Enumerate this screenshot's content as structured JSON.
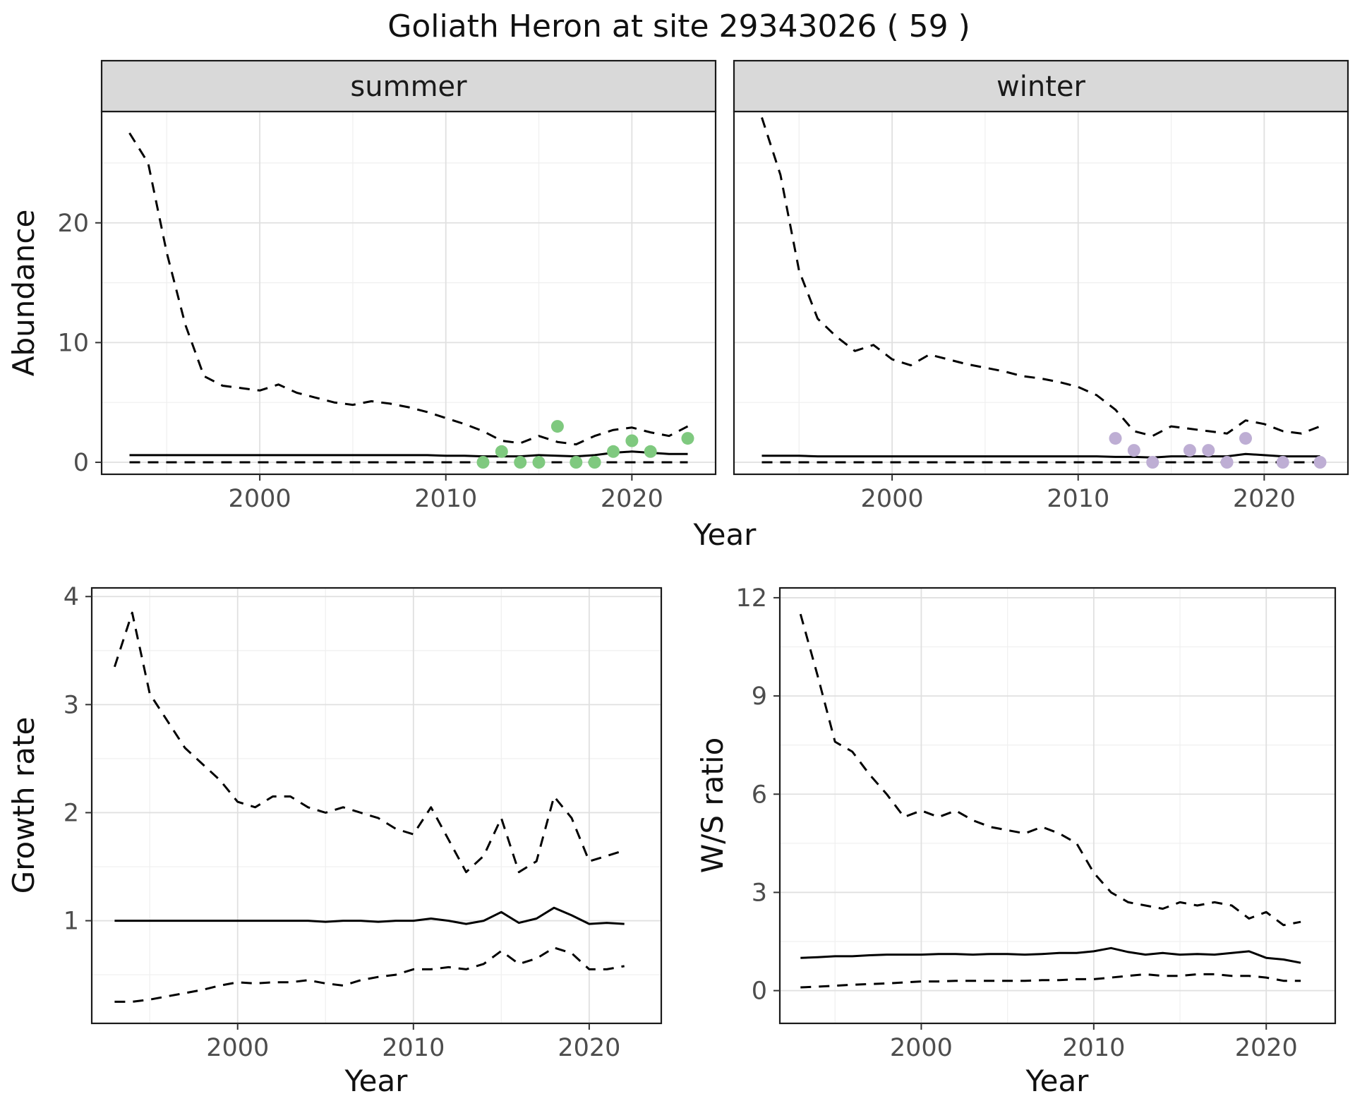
{
  "title": "Goliath Heron at site 29343026 ( 59 )",
  "colors": {
    "summer_points": "#7fc97f",
    "winter_points": "#beaed4",
    "line": "#000000",
    "strip_bg": "#d9d9d9",
    "panel_border": "#1a1a1a",
    "grid_major": "#e0e0e0",
    "grid_minor": "#f0f0f0",
    "tick_text": "#4d4d4d"
  },
  "chart_data": [
    {
      "id": "abundance",
      "type": "line",
      "xlabel": "Year",
      "ylabel": "Abundance",
      "legend": "none",
      "facets": [
        {
          "label": "summer",
          "xlim": [
            1991.5,
            2024.5
          ],
          "ylim": [
            -1.0,
            29.3
          ],
          "xticks": [
            2000,
            2010,
            2020
          ],
          "yticks": [
            0,
            10,
            20
          ],
          "xminor": [
            1995,
            2005,
            2015
          ],
          "yminor": [
            5,
            15,
            25
          ],
          "x": [
            1993,
            1994,
            1995,
            1996,
            1997,
            1998,
            1999,
            2000,
            2001,
            2002,
            2003,
            2004,
            2005,
            2006,
            2007,
            2008,
            2009,
            2010,
            2011,
            2012,
            2013,
            2014,
            2015,
            2016,
            2017,
            2018,
            2019,
            2020,
            2021,
            2022,
            2023
          ],
          "series": [
            {
              "name": "upper-ci",
              "style": "dashed",
              "y": [
                27.5,
                25.0,
                17.5,
                11.5,
                7.2,
                6.4,
                6.2,
                6.0,
                6.5,
                5.8,
                5.4,
                5.0,
                4.8,
                5.1,
                4.9,
                4.6,
                4.2,
                3.7,
                3.2,
                2.6,
                1.8,
                1.6,
                2.2,
                1.7,
                1.5,
                2.2,
                2.7,
                2.9,
                2.5,
                2.2,
                3.0
              ]
            },
            {
              "name": "median",
              "style": "solid",
              "y": [
                0.6,
                0.6,
                0.6,
                0.6,
                0.6,
                0.6,
                0.6,
                0.6,
                0.6,
                0.6,
                0.6,
                0.6,
                0.6,
                0.6,
                0.6,
                0.6,
                0.6,
                0.55,
                0.55,
                0.5,
                0.5,
                0.5,
                0.6,
                0.55,
                0.5,
                0.6,
                0.8,
                0.9,
                0.8,
                0.7,
                0.7
              ]
            },
            {
              "name": "lower-ci",
              "style": "dashed",
              "y": [
                0,
                0,
                0,
                0,
                0,
                0,
                0,
                0,
                0,
                0,
                0,
                0,
                0,
                0,
                0,
                0,
                0,
                0,
                0,
                0,
                0,
                0,
                0,
                0,
                0,
                0,
                0,
                0,
                0,
                0,
                0
              ]
            },
            {
              "name": "observed-counts",
              "style": "points",
              "color": "#7fc97f",
              "x": [
                2012,
                2013,
                2014,
                2015,
                2016,
                2017,
                2018,
                2019,
                2020,
                2021,
                2023
              ],
              "y": [
                0,
                0.9,
                0,
                0,
                3,
                0,
                0,
                0.9,
                1.8,
                0.9,
                2
              ]
            }
          ]
        },
        {
          "label": "winter",
          "xlim": [
            1991.5,
            2024.5
          ],
          "ylim": [
            -1.0,
            29.3
          ],
          "xticks": [
            2000,
            2010,
            2020
          ],
          "yticks": [
            0,
            10,
            20
          ],
          "xminor": [
            1995,
            2005,
            2015
          ],
          "yminor": [
            5,
            15,
            25
          ],
          "x": [
            1993,
            1994,
            1995,
            1996,
            1997,
            1998,
            1999,
            2000,
            2001,
            2002,
            2003,
            2004,
            2005,
            2006,
            2007,
            2008,
            2009,
            2010,
            2011,
            2012,
            2013,
            2014,
            2015,
            2016,
            2017,
            2018,
            2019,
            2020,
            2021,
            2022,
            2023
          ],
          "series": [
            {
              "name": "upper-ci",
              "style": "dashed",
              "y": [
                28.8,
                24.0,
                16.0,
                12.0,
                10.5,
                9.3,
                9.8,
                8.6,
                8.1,
                9.0,
                8.6,
                8.2,
                7.9,
                7.6,
                7.2,
                7.0,
                6.7,
                6.3,
                5.6,
                4.4,
                2.6,
                2.2,
                3.0,
                2.8,
                2.6,
                2.4,
                3.5,
                3.2,
                2.6,
                2.4,
                3.0
              ]
            },
            {
              "name": "median",
              "style": "solid",
              "y": [
                0.55,
                0.55,
                0.55,
                0.5,
                0.5,
                0.5,
                0.5,
                0.5,
                0.5,
                0.5,
                0.5,
                0.5,
                0.5,
                0.5,
                0.5,
                0.5,
                0.5,
                0.5,
                0.5,
                0.45,
                0.45,
                0.4,
                0.5,
                0.5,
                0.5,
                0.5,
                0.7,
                0.6,
                0.5,
                0.5,
                0.5
              ]
            },
            {
              "name": "lower-ci",
              "style": "dashed",
              "y": [
                0,
                0,
                0,
                0,
                0,
                0,
                0,
                0,
                0,
                0,
                0,
                0,
                0,
                0,
                0,
                0,
                0,
                0,
                0,
                0,
                0,
                0,
                0,
                0,
                0,
                0,
                0,
                0,
                0,
                0,
                0
              ]
            },
            {
              "name": "observed-counts",
              "style": "points",
              "color": "#beaed4",
              "x": [
                2012,
                2013,
                2014,
                2016,
                2017,
                2018,
                2019,
                2021,
                2023
              ],
              "y": [
                2,
                1,
                0,
                1,
                1,
                0,
                2,
                0,
                0
              ]
            }
          ]
        }
      ]
    },
    {
      "id": "growth_rate",
      "type": "line",
      "xlabel": "Year",
      "ylabel": "Growth rate",
      "legend": "none",
      "panel": {
        "xlim": [
          1991.7,
          2024.1
        ],
        "ylim": [
          0.05,
          4.08
        ],
        "xticks": [
          2000,
          2010,
          2020
        ],
        "yticks": [
          1,
          2,
          3,
          4
        ],
        "xminor": [
          1995,
          2005,
          2015
        ],
        "yminor": [
          0.5,
          1.5,
          2.5,
          3.5
        ],
        "x": [
          1993,
          1994,
          1995,
          1996,
          1997,
          1998,
          1999,
          2000,
          2001,
          2002,
          2003,
          2004,
          2005,
          2006,
          2007,
          2008,
          2009,
          2010,
          2011,
          2012,
          2013,
          2014,
          2015,
          2016,
          2017,
          2018,
          2019,
          2020,
          2021,
          2022
        ],
        "series": [
          {
            "name": "upper-ci",
            "style": "dashed",
            "y": [
              3.35,
              3.85,
              3.1,
              2.85,
              2.6,
              2.45,
              2.3,
              2.1,
              2.05,
              2.15,
              2.15,
              2.05,
              2.0,
              2.05,
              2.0,
              1.95,
              1.85,
              1.8,
              2.05,
              1.75,
              1.45,
              1.6,
              1.95,
              1.45,
              1.55,
              2.15,
              1.95,
              1.55,
              1.6,
              1.65
            ]
          },
          {
            "name": "median",
            "style": "solid",
            "y": [
              1.0,
              1.0,
              1.0,
              1.0,
              1.0,
              1.0,
              1.0,
              1.0,
              1.0,
              1.0,
              1.0,
              1.0,
              0.99,
              1.0,
              1.0,
              0.99,
              1.0,
              1.0,
              1.02,
              1.0,
              0.97,
              1.0,
              1.08,
              0.98,
              1.02,
              1.12,
              1.05,
              0.97,
              0.98,
              0.97
            ]
          },
          {
            "name": "lower-ci",
            "style": "dashed",
            "y": [
              0.25,
              0.25,
              0.27,
              0.3,
              0.33,
              0.36,
              0.4,
              0.43,
              0.42,
              0.43,
              0.43,
              0.45,
              0.42,
              0.4,
              0.45,
              0.48,
              0.5,
              0.55,
              0.55,
              0.57,
              0.55,
              0.6,
              0.72,
              0.6,
              0.65,
              0.75,
              0.7,
              0.55,
              0.55,
              0.58
            ]
          }
        ]
      }
    },
    {
      "id": "ws_ratio",
      "type": "line",
      "xlabel": "Year",
      "ylabel": "W/S ratio",
      "legend": "none",
      "panel": {
        "xlim": [
          1991.8,
          2024.0
        ],
        "ylim": [
          -1.0,
          12.3
        ],
        "xticks": [
          2000,
          2010,
          2020
        ],
        "yticks": [
          0,
          3,
          6,
          9,
          12
        ],
        "xminor": [
          1995,
          2005,
          2015
        ],
        "yminor": [
          1.5,
          4.5,
          7.5,
          10.5
        ],
        "x": [
          1993,
          1994,
          1995,
          1996,
          1997,
          1998,
          1999,
          2000,
          2001,
          2002,
          2003,
          2004,
          2005,
          2006,
          2007,
          2008,
          2009,
          2010,
          2011,
          2012,
          2013,
          2014,
          2015,
          2016,
          2017,
          2018,
          2019,
          2020,
          2021,
          2022
        ],
        "series": [
          {
            "name": "upper-ci",
            "style": "dashed",
            "y": [
              11.5,
              9.6,
              7.6,
              7.3,
              6.6,
              6.0,
              5.3,
              5.5,
              5.3,
              5.5,
              5.2,
              5.0,
              4.9,
              4.8,
              5.0,
              4.8,
              4.5,
              3.6,
              3.0,
              2.7,
              2.6,
              2.5,
              2.7,
              2.6,
              2.7,
              2.6,
              2.2,
              2.4,
              2.0,
              2.1
            ]
          },
          {
            "name": "median",
            "style": "solid",
            "y": [
              1.0,
              1.02,
              1.05,
              1.05,
              1.08,
              1.1,
              1.1,
              1.1,
              1.12,
              1.12,
              1.1,
              1.12,
              1.12,
              1.1,
              1.12,
              1.15,
              1.15,
              1.2,
              1.3,
              1.18,
              1.1,
              1.15,
              1.1,
              1.12,
              1.1,
              1.15,
              1.2,
              1.0,
              0.95,
              0.85
            ]
          },
          {
            "name": "lower-ci",
            "style": "dashed",
            "y": [
              0.1,
              0.12,
              0.15,
              0.18,
              0.2,
              0.22,
              0.25,
              0.28,
              0.28,
              0.3,
              0.3,
              0.3,
              0.3,
              0.3,
              0.32,
              0.32,
              0.35,
              0.35,
              0.4,
              0.45,
              0.5,
              0.45,
              0.45,
              0.5,
              0.5,
              0.45,
              0.45,
              0.4,
              0.3,
              0.3
            ]
          }
        ]
      }
    }
  ]
}
